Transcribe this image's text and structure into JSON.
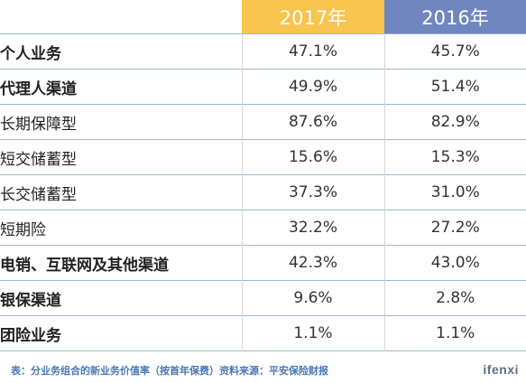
{
  "chart_data": {
    "type": "table",
    "columns": [
      "",
      "2017年",
      "2016年"
    ],
    "rows": [
      {
        "label": "个人业务",
        "level": 0,
        "values": [
          "47.1%",
          "45.7%"
        ]
      },
      {
        "label": "代理人渠道",
        "level": 1,
        "values": [
          "49.9%",
          "51.4%"
        ]
      },
      {
        "label": "长期保障型",
        "level": 2,
        "values": [
          "87.6%",
          "82.9%"
        ]
      },
      {
        "label": "短交储蓄型",
        "level": 2,
        "values": [
          "15.6%",
          "15.3%"
        ]
      },
      {
        "label": "长交储蓄型",
        "level": 2,
        "values": [
          "37.3%",
          "31.0%"
        ]
      },
      {
        "label": "短期险",
        "level": 2,
        "values": [
          "32.2%",
          "27.2%"
        ]
      },
      {
        "label": "电销、互联网及其他渠道",
        "level": 1,
        "values": [
          "42.3%",
          "43.0%"
        ]
      },
      {
        "label": "银保渠道",
        "level": 1,
        "values": [
          "9.6%",
          "2.8%"
        ]
      },
      {
        "label": "团险业务",
        "level": 0,
        "values": [
          "1.1%",
          "1.1%"
        ]
      }
    ],
    "header_colors": {
      "2017年": "#f9c44f",
      "2016年": "#6f86bf"
    }
  },
  "caption": "表：分业务组合的新业务价值率（按首年保费）资料来源：平安保险财报",
  "logo": "ifenxi"
}
